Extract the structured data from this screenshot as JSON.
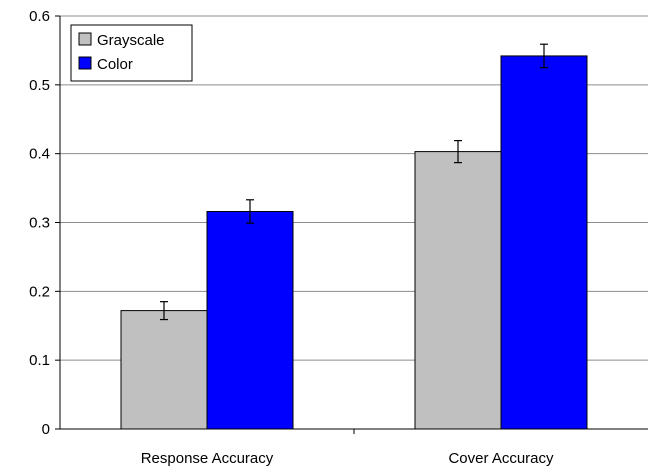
{
  "chart_data": {
    "type": "bar",
    "categories": [
      "Response Accuracy",
      "Cover Accuracy"
    ],
    "series": [
      {
        "name": "Grayscale",
        "color": "#c0c0c0",
        "values": [
          0.172,
          0.403
        ],
        "errors": [
          0.013,
          0.016
        ]
      },
      {
        "name": "Color",
        "color": "#0000ff",
        "values": [
          0.316,
          0.542
        ],
        "errors": [
          0.017,
          0.017
        ]
      }
    ],
    "title": "",
    "xlabel": "",
    "ylabel": "",
    "ylim": [
      0,
      0.6
    ],
    "yticks": [
      "0",
      "0.1",
      "0.2",
      "0.3",
      "0.4",
      "0.5",
      "0.6"
    ],
    "grid": true,
    "legend_position": "top-left"
  }
}
